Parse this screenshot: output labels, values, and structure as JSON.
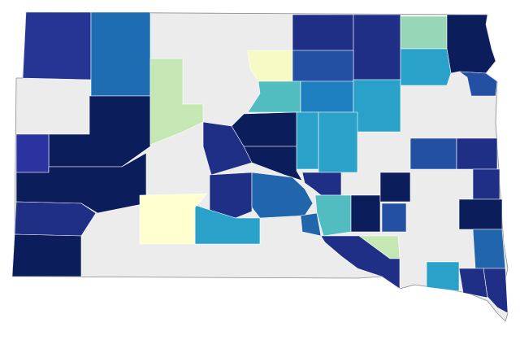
{
  "map": {
    "region_colors": [
      "#ececec",
      "#263594",
      "#1e6db2",
      "#1f2f86",
      "#1f2f86",
      "#98d6b8",
      "#0c1d5c",
      "#f6fbc6",
      "#2450a4",
      "#0c1d5c",
      "#2b33a0",
      "#0c1d5c",
      "#1f2f86",
      "#0c1d5c",
      "#c4e7b4",
      "#52bdc1",
      "#1d7fbf",
      "#2aa1c8",
      "#2aa1c8",
      "#2450a4",
      "#2aa1c8",
      "#2aa1c8",
      "#0c1d5c",
      "#0c1d5c",
      "#1f2f86",
      "#1f2f86",
      "#2166ac",
      "#2aa1c8",
      "#ffffd0",
      "#1f2f86",
      "#2166ac",
      "#52bdc1",
      "#0c1d5c",
      "#c4e7b4",
      "#1f2f86",
      "#0c1d5c",
      "#2450a4",
      "#2450a4",
      "#1f2f86",
      "#1f2f86",
      "#0c1d5c",
      "#2166ac",
      "#1f2f86",
      "#1f2f86",
      "#2aa1c8"
    ]
  }
}
